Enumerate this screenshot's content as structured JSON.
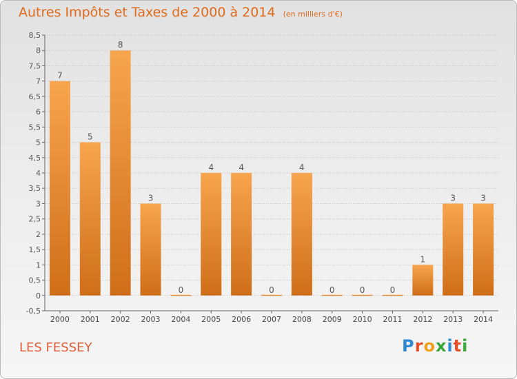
{
  "header": {
    "title": "Autres Impôts et Taxes de 2000 à 2014",
    "subtitle": "(en milliers d'€)"
  },
  "footer": {
    "place": "LES FESSEY",
    "logo": {
      "letters": [
        "P",
        "r",
        "o",
        "x",
        "i",
        "t",
        "i"
      ],
      "colors": [
        "#2e8bd3",
        "#e8502a",
        "#f0a021",
        "#3aa63a",
        "#2e8bd3",
        "#e8502a",
        "#3aa63a"
      ]
    }
  },
  "colors": {
    "bar_light": "#f7a54e",
    "bar_dark": "#cf6e19",
    "axis": "#666666",
    "grid": "#bdbdbd"
  },
  "chart_data": {
    "type": "bar",
    "title": "Autres Impôts et Taxes de 2000 à 2014",
    "subtitle": "(en milliers d'€)",
    "categories": [
      "2000",
      "2001",
      "2002",
      "2003",
      "2004",
      "2005",
      "2006",
      "2007",
      "2008",
      "2009",
      "2010",
      "2011",
      "2012",
      "2013",
      "2014"
    ],
    "values": [
      7,
      5,
      8,
      3,
      0,
      4,
      4,
      0,
      4,
      0,
      0,
      0,
      1,
      3,
      3
    ],
    "data_labels": [
      "7",
      "5",
      "8",
      "3",
      "0",
      "4",
      "4",
      "0",
      "4",
      "0",
      "0",
      "0",
      "1",
      "3",
      "3"
    ],
    "ylim": [
      -0.5,
      8.5
    ],
    "yticks": [
      "-0,5",
      "0",
      "0,5",
      "1",
      "1,5",
      "2",
      "2,5",
      "3",
      "3,5",
      "4",
      "4,5",
      "5",
      "5,5",
      "6",
      "6,5",
      "7",
      "7,5",
      "8",
      "8,5"
    ],
    "ytick_values": [
      -0.5,
      0,
      0.5,
      1,
      1.5,
      2,
      2.5,
      3,
      3.5,
      4,
      4.5,
      5,
      5.5,
      6,
      6.5,
      7,
      7.5,
      8,
      8.5
    ],
    "grid": true
  }
}
